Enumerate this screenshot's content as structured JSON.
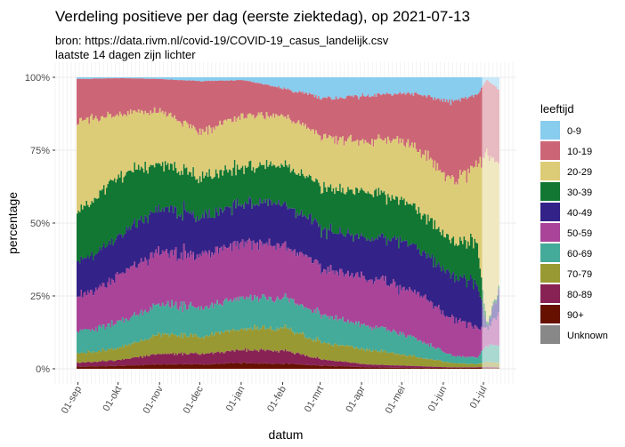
{
  "chart_data": {
    "type": "area",
    "stacked": true,
    "normalized": true,
    "title": "Verdeling positieve per dag (eerste ziektedag), op 2021-07-13",
    "subtitle_lines": [
      "bron: https://data.rivm.nl/covid-19/COVID-19_casus_landelijk.csv",
      "laatste 14 dagen zijn lichter"
    ],
    "xlabel": "datum",
    "ylabel": "percentage",
    "x_range": [
      "2020-08-31",
      "2021-07-13"
    ],
    "ylim": [
      0,
      100
    ],
    "y_ticks": [
      {
        "value": 0,
        "label": "0%"
      },
      {
        "value": 25,
        "label": "25%"
      },
      {
        "value": 50,
        "label": "50%"
      },
      {
        "value": 75,
        "label": "75%"
      },
      {
        "value": 100,
        "label": "100%"
      }
    ],
    "x_ticks": [
      {
        "date": "2020-09-01",
        "label": "01-sep"
      },
      {
        "date": "2020-10-01",
        "label": "01-okt"
      },
      {
        "date": "2020-11-01",
        "label": "01-nov"
      },
      {
        "date": "2020-12-01",
        "label": "01-dec"
      },
      {
        "date": "2021-01-01",
        "label": "01-jan"
      },
      {
        "date": "2021-02-01",
        "label": "01-feb"
      },
      {
        "date": "2021-03-01",
        "label": "01-mrt"
      },
      {
        "date": "2021-04-01",
        "label": "01-apr"
      },
      {
        "date": "2021-05-01",
        "label": "01-mei"
      },
      {
        "date": "2021-06-01",
        "label": "01-jun"
      },
      {
        "date": "2021-07-01",
        "label": "01-jul"
      }
    ],
    "lighter_from": "2021-06-30",
    "grid": true,
    "legend": {
      "title": "leeftijd",
      "position": "right"
    },
    "x": [
      "2020-08-31",
      "2020-10-01",
      "2020-11-01",
      "2020-12-02",
      "2021-01-03",
      "2021-02-03",
      "2021-03-06",
      "2021-04-06",
      "2021-05-07",
      "2021-06-07",
      "2021-06-27",
      "2021-07-04",
      "2021-07-13"
    ],
    "series": [
      {
        "name": "0-9",
        "color": "#88CCEE",
        "values": [
          0.6,
          0.3,
          0.6,
          1.3,
          1.0,
          4.0,
          7.4,
          6.4,
          5.4,
          8.4,
          6.0,
          1.0,
          4.0
        ]
      },
      {
        "name": "10-19",
        "color": "#CC6677",
        "values": [
          14.4,
          12.2,
          10.9,
          17.7,
          12.0,
          9.5,
          13.6,
          15.6,
          16.6,
          27.0,
          25.3,
          25.2,
          26.0
        ]
      },
      {
        "name": "20-29",
        "color": "#DDCC77",
        "values": [
          31.6,
          20.9,
          18.5,
          15.4,
          17.3,
          16.8,
          17.0,
          17.5,
          20.5,
          20.6,
          26.7,
          57.0,
          44.0
        ]
      },
      {
        "name": "30-39",
        "color": "#117733",
        "values": [
          17.4,
          21.6,
          15.0,
          13.6,
          12.2,
          13.2,
          14.7,
          15.5,
          13.5,
          12.0,
          13.0,
          1.0,
          1.0
        ]
      },
      {
        "name": "40-49",
        "color": "#332288",
        "values": [
          11.6,
          13.0,
          15.0,
          13.0,
          13.5,
          14.5,
          13.3,
          14.0,
          16.0,
          14.2,
          15.3,
          1.0,
          7.2
        ]
      },
      {
        "name": "50-59",
        "color": "#AA4499",
        "values": [
          11.7,
          16.2,
          18.1,
          18.1,
          19.1,
          18.1,
          16.2,
          16.2,
          16.3,
          13.2,
          10.1,
          6.2,
          10.2
        ]
      },
      {
        "name": "60-69",
        "color": "#44AA99",
        "values": [
          7.6,
          8.7,
          10.2,
          9.7,
          10.7,
          10.2,
          9.2,
          8.2,
          7.1,
          2.6,
          2.1,
          6.1,
          5.6
        ]
      },
      {
        "name": "70-79",
        "color": "#999933",
        "values": [
          3.1,
          4.1,
          6.6,
          6.1,
          7.6,
          7.6,
          5.6,
          5.1,
          3.6,
          1.5,
          1.0,
          1.8,
          1.5
        ]
      },
      {
        "name": "80-89",
        "color": "#882255",
        "values": [
          1.3,
          2.0,
          3.6,
          3.6,
          4.6,
          4.4,
          2.0,
          1.0,
          0.7,
          0.2,
          0.2,
          0.4,
          0.2
        ]
      },
      {
        "name": "90+",
        "color": "#661100",
        "values": [
          0.7,
          1.0,
          1.5,
          1.5,
          2.0,
          1.7,
          1.0,
          0.5,
          0.3,
          0.3,
          0.3,
          0.3,
          0.3
        ]
      },
      {
        "name": "Unknown",
        "color": "#888888",
        "values": [
          0,
          0,
          0,
          0,
          0,
          0,
          0,
          0,
          0,
          0,
          0,
          0,
          0
        ]
      }
    ]
  }
}
